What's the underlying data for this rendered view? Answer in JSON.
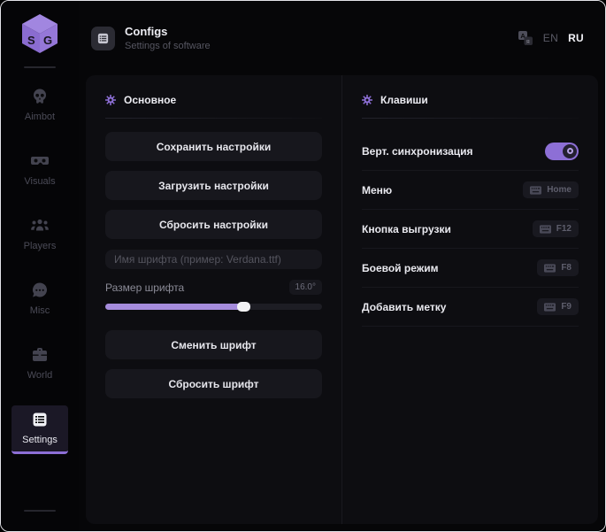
{
  "header": {
    "title": "Configs",
    "subtitle": "Settings of software",
    "language": {
      "en": "EN",
      "ru": "RU",
      "selected": "RU"
    }
  },
  "sidebar": {
    "logo_letters": "SG",
    "items": [
      {
        "id": "aimbot",
        "label": "Aimbot",
        "icon": "skull-icon",
        "active": false
      },
      {
        "id": "visuals",
        "label": "Visuals",
        "icon": "vr-goggles-icon",
        "active": false
      },
      {
        "id": "players",
        "label": "Players",
        "icon": "players-icon",
        "active": false
      },
      {
        "id": "misc",
        "label": "Misc",
        "icon": "chat-dots-icon",
        "active": false
      },
      {
        "id": "world",
        "label": "World",
        "icon": "briefcase-icon",
        "active": false
      },
      {
        "id": "settings",
        "label": "Settings",
        "icon": "list-icon",
        "active": true
      }
    ]
  },
  "general": {
    "title": "Основное",
    "save_button": "Сохранить настройки",
    "load_button": "Загрузить настройки",
    "reset_button": "Сбросить настройки",
    "font_name_placeholder": "Имя шрифта (пример: Verdana.ttf)",
    "font_size_label": "Размер шрифта",
    "font_size_value": "16.0°",
    "font_size_percent": 64,
    "change_font_button": "Сменить шрифт",
    "reset_font_button": "Сбросить шрифт"
  },
  "keys": {
    "title": "Клавиши",
    "vsync": {
      "label": "Верт. синхронизация",
      "on": true
    },
    "bindings": [
      {
        "label": "Меню",
        "key": "Home"
      },
      {
        "label": "Кнопка выгрузки",
        "key": "F12"
      },
      {
        "label": "Боевой режим",
        "key": "F8"
      },
      {
        "label": "Добавить метку",
        "key": "F9"
      }
    ]
  },
  "colors": {
    "accent": "#8d6fd6",
    "slider_fill": "#a58cdc",
    "panel_bg": "#0d0d11",
    "button_bg": "#17171d"
  }
}
